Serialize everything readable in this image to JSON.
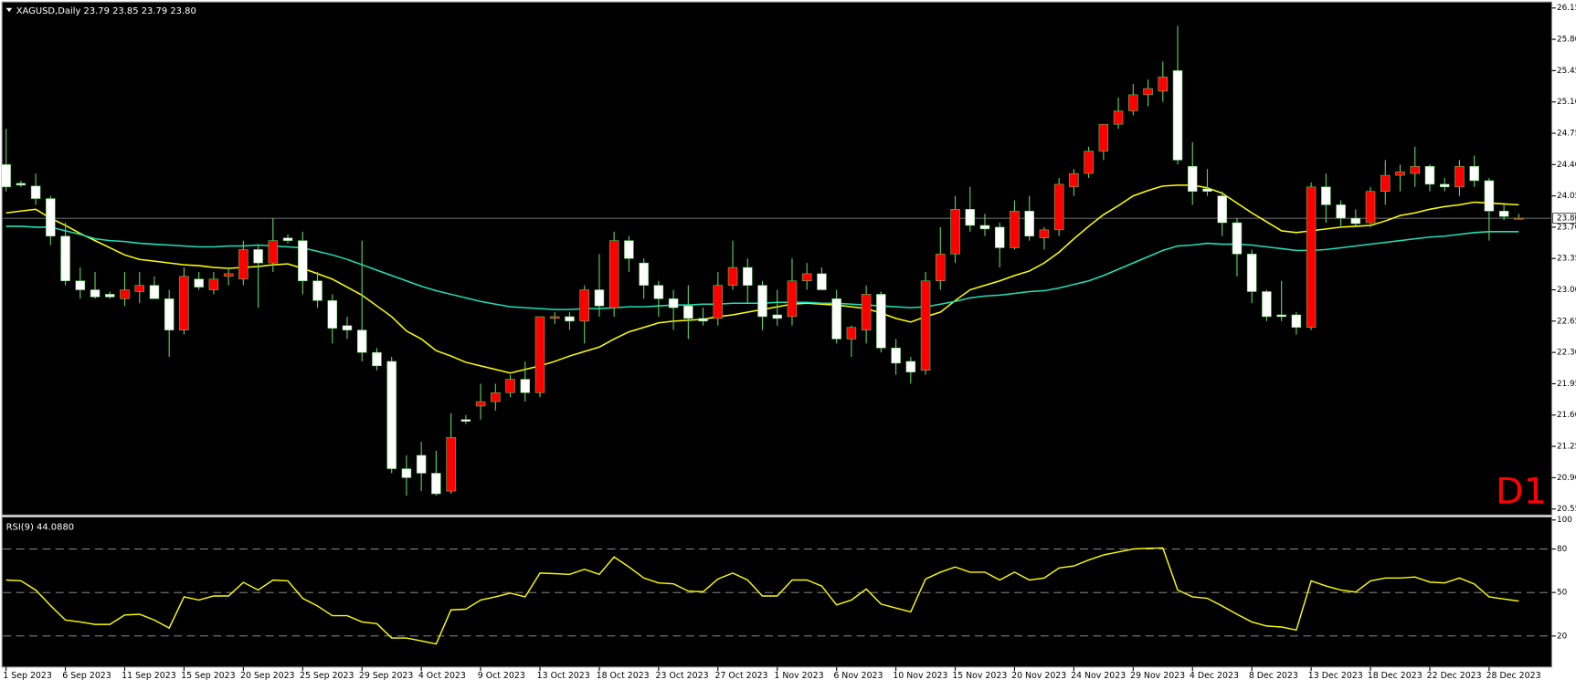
{
  "chart_data": [
    {
      "type": "candlestick",
      "title": "XAGUSD,Daily  23.79 23.85 23.79 23.80",
      "annotation": "D1",
      "annotation_color": "#ff0000",
      "up_color": "#ff0000",
      "down_color": "#ffffff",
      "wick_color": "#5fd35f",
      "categories": [
        "1 Sep 2023",
        null,
        null,
        null,
        "6 Sep 2023",
        null,
        null,
        null,
        "11 Sep 2023",
        null,
        null,
        null,
        "15 Sep 2023",
        null,
        null,
        null,
        "20 Sep 2023",
        null,
        null,
        null,
        "25 Sep 2023",
        null,
        null,
        null,
        "29 Sep 2023",
        null,
        null,
        null,
        "4 Oct 2023",
        null,
        null,
        null,
        "9 Oct 2023",
        null,
        null,
        null,
        "13 Oct 2023",
        null,
        null,
        null,
        "18 Oct 2023",
        null,
        null,
        null,
        "23 Oct 2023",
        null,
        null,
        null,
        "27 Oct 2023",
        null,
        null,
        null,
        "1 Nov 2023",
        null,
        null,
        null,
        "6 Nov 2023",
        null,
        null,
        null,
        "10 Nov 2023",
        null,
        null,
        null,
        "15 Nov 2023",
        null,
        null,
        null,
        "20 Nov 2023",
        null,
        null,
        null,
        "24 Nov 2023",
        null,
        null,
        null,
        "29 Nov 2023",
        null,
        null,
        null,
        "4 Dec 2023",
        null,
        null,
        null,
        "8 Dec 2023",
        null,
        null,
        null,
        "13 Dec 2023",
        null,
        null,
        null,
        "18 Dec 2023",
        null,
        null,
        null,
        "22 Dec 2023",
        null,
        null,
        null,
        "28 Dec 2023",
        null,
        null
      ],
      "open": [
        24.4,
        24.19,
        24.16,
        24.02,
        23.6,
        23.1,
        23.0,
        22.95,
        22.9,
        22.98,
        23.05,
        22.9,
        22.55,
        23.12,
        23.0,
        23.15,
        23.12,
        23.45,
        23.3,
        23.58,
        23.55,
        23.1,
        22.88,
        22.6,
        22.55,
        22.3,
        22.2,
        21.0,
        21.15,
        20.95,
        20.75,
        21.55,
        21.7,
        21.75,
        21.85,
        22.0,
        21.85,
        22.68,
        22.7,
        22.65,
        23.0,
        22.8,
        23.55,
        23.3,
        23.05,
        22.9,
        22.82,
        22.68,
        22.68,
        23.05,
        23.25,
        23.05,
        22.72,
        22.7,
        23.1,
        23.18,
        22.9,
        22.45,
        22.55,
        22.95,
        22.35,
        22.2,
        22.1,
        23.1,
        23.4,
        23.9,
        23.72,
        23.7,
        23.47,
        23.88,
        23.58,
        23.67,
        24.15,
        24.3,
        24.55,
        24.85,
        25.0,
        25.18,
        25.22,
        25.45,
        24.38,
        24.13,
        24.05,
        23.75,
        23.4,
        22.98,
        22.72,
        22.72,
        22.58,
        24.15,
        23.95,
        23.8,
        23.75,
        24.1,
        24.28,
        24.3,
        24.38,
        24.18,
        24.15,
        24.38,
        24.22,
        23.88,
        23.79
      ],
      "high": [
        24.8,
        24.22,
        24.3,
        24.05,
        23.75,
        23.25,
        23.2,
        22.98,
        23.2,
        23.2,
        23.15,
        23.0,
        23.25,
        23.2,
        23.2,
        23.25,
        23.55,
        23.5,
        23.8,
        23.62,
        23.65,
        23.2,
        22.95,
        22.7,
        23.55,
        22.35,
        22.25,
        21.15,
        21.3,
        21.2,
        21.62,
        21.6,
        21.95,
        21.95,
        22.05,
        22.2,
        22.7,
        22.75,
        22.75,
        23.05,
        23.4,
        23.65,
        23.6,
        23.35,
        23.1,
        23.0,
        23.05,
        22.8,
        23.2,
        23.55,
        23.35,
        23.1,
        23.0,
        23.35,
        23.3,
        23.25,
        23.0,
        22.6,
        23.05,
        22.98,
        22.45,
        22.25,
        23.2,
        23.7,
        24.05,
        24.15,
        23.85,
        23.75,
        24.0,
        24.05,
        23.7,
        24.25,
        24.35,
        24.6,
        24.85,
        25.15,
        25.3,
        25.35,
        25.55,
        25.95,
        24.65,
        24.35,
        24.1,
        23.8,
        23.45,
        23.0,
        23.1,
        22.75,
        24.2,
        24.3,
        24.0,
        23.9,
        24.15,
        24.45,
        24.4,
        24.6,
        24.4,
        24.25,
        24.45,
        24.5,
        24.25,
        23.95,
        23.85
      ],
      "low": [
        24.1,
        24.15,
        23.95,
        23.5,
        23.05,
        22.9,
        22.9,
        22.9,
        22.82,
        22.85,
        22.9,
        22.25,
        22.5,
        23.0,
        22.95,
        23.05,
        23.05,
        22.8,
        23.2,
        23.52,
        22.95,
        22.8,
        22.4,
        22.45,
        22.2,
        22.1,
        20.95,
        20.7,
        20.75,
        20.7,
        20.72,
        21.5,
        21.55,
        21.65,
        21.8,
        21.75,
        21.8,
        22.62,
        22.55,
        22.4,
        22.7,
        22.7,
        23.2,
        22.9,
        22.7,
        22.55,
        22.45,
        22.6,
        22.6,
        23.0,
        22.85,
        22.55,
        22.6,
        22.6,
        23.0,
        23.0,
        22.4,
        22.25,
        22.4,
        22.3,
        22.05,
        21.95,
        22.05,
        23.0,
        23.3,
        23.65,
        23.6,
        23.25,
        23.45,
        23.55,
        23.45,
        23.6,
        24.05,
        24.25,
        24.45,
        24.8,
        24.95,
        25.05,
        25.1,
        24.4,
        23.95,
        24.05,
        23.6,
        23.15,
        22.85,
        22.65,
        22.65,
        22.5,
        22.55,
        23.75,
        23.7,
        23.72,
        23.7,
        23.95,
        24.1,
        24.15,
        24.1,
        24.1,
        24.05,
        24.15,
        23.55,
        23.78,
        23.79
      ],
      "close": [
        24.15,
        24.17,
        24.02,
        23.6,
        23.1,
        23.0,
        22.92,
        22.92,
        23.0,
        23.05,
        22.9,
        22.55,
        23.15,
        23.03,
        23.12,
        23.18,
        23.45,
        23.3,
        23.55,
        23.55,
        23.1,
        22.88,
        22.57,
        22.55,
        22.3,
        22.15,
        21.0,
        20.9,
        20.95,
        20.72,
        21.35,
        21.53,
        21.75,
        21.85,
        22.0,
        21.85,
        22.7,
        22.7,
        22.65,
        23.0,
        22.82,
        23.55,
        23.35,
        23.05,
        22.9,
        22.8,
        22.68,
        22.65,
        23.05,
        23.25,
        23.05,
        22.7,
        22.68,
        23.1,
        23.18,
        23.0,
        22.45,
        22.58,
        22.95,
        22.35,
        22.18,
        22.08,
        23.1,
        23.4,
        23.9,
        23.72,
        23.68,
        23.47,
        23.88,
        23.6,
        23.67,
        24.18,
        24.3,
        24.55,
        24.85,
        25.0,
        25.18,
        25.25,
        25.38,
        24.45,
        24.1,
        24.1,
        23.75,
        23.4,
        22.98,
        22.7,
        22.7,
        22.58,
        24.15,
        23.95,
        23.8,
        23.74,
        24.1,
        24.28,
        24.32,
        24.38,
        24.18,
        24.15,
        24.38,
        24.22,
        23.88,
        23.82,
        23.8
      ],
      "lines": [
        {
          "color": "#ffff00",
          "values": [
            23.86,
            23.88,
            23.9,
            23.8,
            23.72,
            23.63,
            23.55,
            23.47,
            23.39,
            23.34,
            23.32,
            23.3,
            23.28,
            23.27,
            23.25,
            23.24,
            23.25,
            23.26,
            23.28,
            23.29,
            23.24,
            23.18,
            23.12,
            23.03,
            22.94,
            22.82,
            22.7,
            22.54,
            22.45,
            22.32,
            22.26,
            22.19,
            22.15,
            22.11,
            22.07,
            22.11,
            22.15,
            22.2,
            22.26,
            22.31,
            22.36,
            22.45,
            22.53,
            22.58,
            22.63,
            22.65,
            22.66,
            22.67,
            22.7,
            22.72,
            22.75,
            22.78,
            22.81,
            22.84,
            22.85,
            22.84,
            22.83,
            22.81,
            22.79,
            22.74,
            22.68,
            22.64,
            22.7,
            22.75,
            22.88,
            23.0,
            23.05,
            23.1,
            23.16,
            23.21,
            23.3,
            23.42,
            23.57,
            23.71,
            23.84,
            23.94,
            24.05,
            24.11,
            24.16,
            24.17,
            24.17,
            24.14,
            24.08,
            23.97,
            23.86,
            23.76,
            23.66,
            23.64,
            23.66,
            23.68,
            23.7,
            23.71,
            23.72,
            23.77,
            23.83,
            23.86,
            23.9,
            23.93,
            23.95,
            23.98,
            23.97,
            23.96,
            23.95
          ]
        },
        {
          "color": "#20e0b8",
          "values": [
            23.71,
            23.71,
            23.7,
            23.7,
            23.66,
            23.62,
            23.57,
            23.55,
            23.54,
            23.52,
            23.51,
            23.5,
            23.49,
            23.48,
            23.48,
            23.49,
            23.49,
            23.5,
            23.49,
            23.48,
            23.47,
            23.43,
            23.39,
            23.34,
            23.28,
            23.22,
            23.16,
            23.1,
            23.04,
            22.99,
            22.95,
            22.91,
            22.87,
            22.84,
            22.81,
            22.8,
            22.79,
            22.78,
            22.78,
            22.79,
            22.79,
            22.8,
            22.81,
            22.81,
            22.82,
            22.83,
            22.83,
            22.84,
            22.84,
            22.85,
            22.85,
            22.85,
            22.86,
            22.86,
            22.86,
            22.85,
            22.85,
            22.84,
            22.83,
            22.82,
            22.81,
            22.8,
            22.81,
            22.84,
            22.87,
            22.91,
            22.93,
            22.94,
            22.96,
            22.98,
            22.99,
            23.02,
            23.06,
            23.1,
            23.16,
            23.23,
            23.3,
            23.37,
            23.44,
            23.49,
            23.5,
            23.52,
            23.51,
            23.51,
            23.5,
            23.48,
            23.46,
            23.44,
            23.44,
            23.45,
            23.47,
            23.49,
            23.51,
            23.53,
            23.55,
            23.57,
            23.59,
            23.6,
            23.62,
            23.64,
            23.65,
            23.65,
            23.65
          ]
        }
      ],
      "current": {
        "value": 23.8,
        "label": "23.80"
      },
      "ylim": [
        20.55,
        26.15
      ],
      "yticks": [
        26.15,
        {
          "value": 25.8,
          "label": "25.80"
        },
        25.45,
        {
          "value": 25.1,
          "label": "25.10"
        },
        24.75,
        {
          "value": 24.4,
          "label": "24.40"
        },
        24.05,
        {
          "value": 23.7,
          "label": "23.70"
        },
        23.35,
        {
          "value": 23,
          "label": "23.00"
        },
        22.65,
        {
          "value": 22.3,
          "label": "22.30"
        },
        21.95,
        {
          "value": 21.6,
          "label": "21.60"
        },
        21.25,
        {
          "value": 20.9,
          "label": "20.90"
        },
        20.55
      ]
    },
    {
      "type": "line",
      "title": "RSI(9) 44.0880",
      "color": "#ffff00",
      "values": [
        58.6,
        58.1,
        51.7,
        41.0,
        31.0,
        29.7,
        28.0,
        28.0,
        34.5,
        35.0,
        31.0,
        25.5,
        47.0,
        44.8,
        47.6,
        47.6,
        57.0,
        51.7,
        58.6,
        58.0,
        46.0,
        40.7,
        34.0,
        34.0,
        29.7,
        28.5,
        18.6,
        18.6,
        16.6,
        14.5,
        38.0,
        38.5,
        44.8,
        47.0,
        49.6,
        47.0,
        63.4,
        63.0,
        62.5,
        66.0,
        62.5,
        74.5,
        67.6,
        60.0,
        56.6,
        56.0,
        51.0,
        50.5,
        59.3,
        63.4,
        58.6,
        47.6,
        47.6,
        58.6,
        58.6,
        54.5,
        41.4,
        44.8,
        52.4,
        42.0,
        39.3,
        36.6,
        59.3,
        64.0,
        67.6,
        64.0,
        64.0,
        58.6,
        64.0,
        58.6,
        60.0,
        66.9,
        68.3,
        72.4,
        75.9,
        77.9,
        80.0,
        80.5,
        80.7,
        51.7,
        47.0,
        46.0,
        40.7,
        35.0,
        29.7,
        26.9,
        26.2,
        24.1,
        58.0,
        54.5,
        51.7,
        50.3,
        58.0,
        60.0,
        60.0,
        60.7,
        57.2,
        56.6,
        60.0,
        55.9,
        47.0,
        45.5,
        44.088
      ],
      "levels": [
        80,
        50,
        20
      ],
      "ylim": [
        0,
        100
      ],
      "yticks": [
        100,
        80,
        50,
        20
      ]
    }
  ]
}
